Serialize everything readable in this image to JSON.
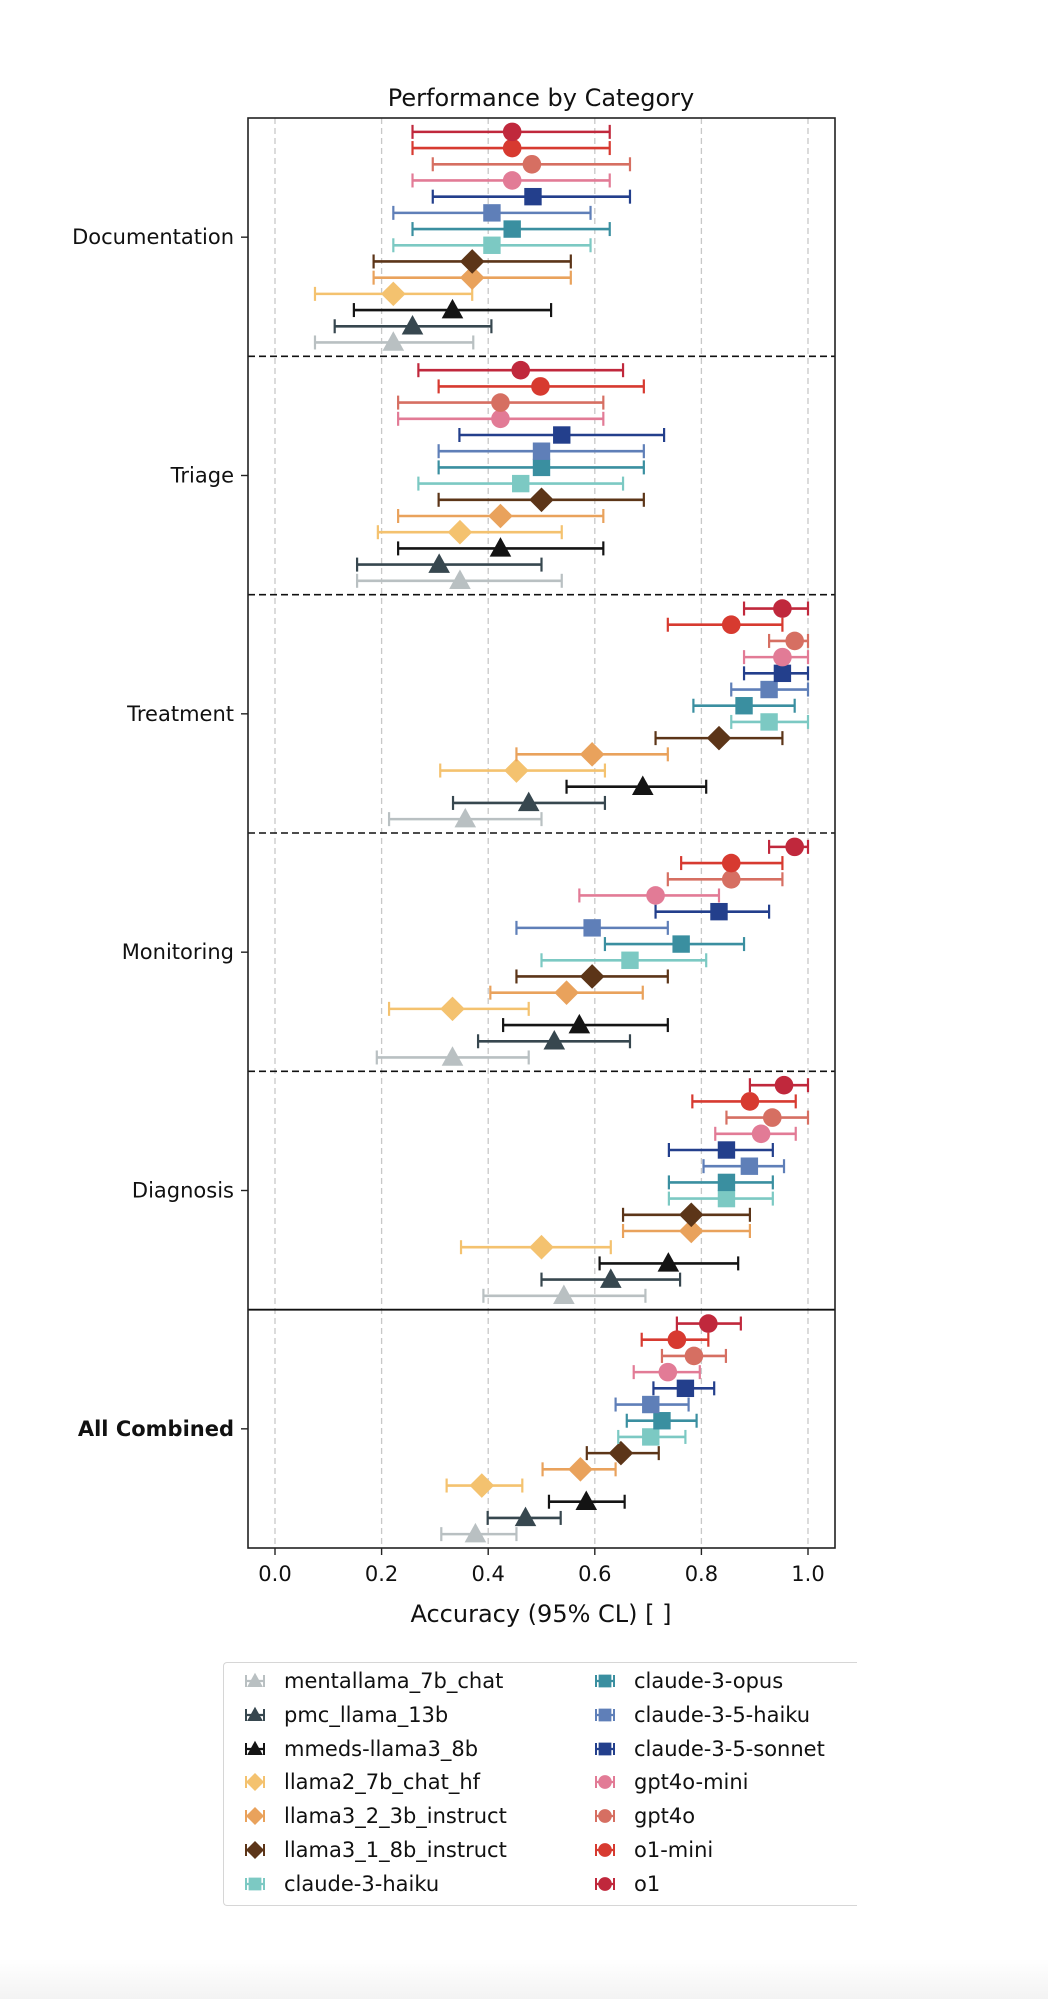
{
  "chart_data": {
    "type": "scatter",
    "subtype": "horizontal-errorbar-dot-plot",
    "title": "Performance by Category",
    "xlabel": "Accuracy (95% CL) [ ]",
    "ylabel": "",
    "xlim": [
      -0.05,
      1.05
    ],
    "xticks": [
      "0.0",
      "0.2",
      "0.4",
      "0.6",
      "0.8",
      "1.0"
    ],
    "xtick_values": [
      0.0,
      0.2,
      0.4,
      0.6,
      0.8,
      1.0
    ],
    "grid": "vertical dashed",
    "legend_placement": "below",
    "categories": [
      "Documentation",
      "Triage",
      "Treatment",
      "Monitoring",
      "Diagnosis",
      "All Combined"
    ],
    "category_bold": [
      false,
      false,
      false,
      false,
      false,
      true
    ],
    "series": [
      {
        "name": "mentallama_7b_chat",
        "marker": "triangle",
        "color": "#b9c0c2",
        "values": [
          0.222,
          0.347,
          0.357,
          0.333,
          0.542,
          0.376
        ],
        "lower": [
          0.075,
          0.154,
          0.214,
          0.191,
          0.391,
          0.312
        ],
        "upper": [
          0.372,
          0.538,
          0.5,
          0.476,
          0.695,
          0.453
        ]
      },
      {
        "name": "pmc_llama_13b",
        "marker": "triangle",
        "color": "#37474f",
        "values": [
          0.258,
          0.308,
          0.476,
          0.524,
          0.63,
          0.47
        ],
        "lower": [
          0.112,
          0.154,
          0.334,
          0.381,
          0.5,
          0.399
        ],
        "upper": [
          0.406,
          0.5,
          0.619,
          0.666,
          0.76,
          0.536
        ]
      },
      {
        "name": "mmeds-llama3_8b",
        "marker": "triangle",
        "color": "#141414",
        "values": [
          0.333,
          0.423,
          0.69,
          0.571,
          0.738,
          0.584
        ],
        "lower": [
          0.148,
          0.231,
          0.547,
          0.428,
          0.609,
          0.514
        ],
        "upper": [
          0.518,
          0.616,
          0.809,
          0.737,
          0.869,
          0.656
        ]
      },
      {
        "name": "llama2_7b_chat_hf",
        "marker": "diamond",
        "color": "#f4c26f",
        "values": [
          0.222,
          0.347,
          0.453,
          0.333,
          0.5,
          0.388
        ],
        "lower": [
          0.075,
          0.193,
          0.31,
          0.214,
          0.349,
          0.322
        ],
        "upper": [
          0.37,
          0.538,
          0.619,
          0.476,
          0.63,
          0.464
        ]
      },
      {
        "name": "llama3_2_3b_instruct",
        "marker": "diamond",
        "color": "#e9a25c",
        "values": [
          0.37,
          0.423,
          0.595,
          0.547,
          0.781,
          0.573
        ],
        "lower": [
          0.185,
          0.231,
          0.453,
          0.404,
          0.653,
          0.502
        ],
        "upper": [
          0.555,
          0.616,
          0.737,
          0.69,
          0.891,
          0.639
        ]
      },
      {
        "name": "llama3_1_8b_instruct",
        "marker": "diamond",
        "color": "#5c3518",
        "values": [
          0.37,
          0.5,
          0.833,
          0.595,
          0.781,
          0.649
        ],
        "lower": [
          0.185,
          0.307,
          0.714,
          0.453,
          0.653,
          0.585
        ],
        "upper": [
          0.555,
          0.692,
          0.952,
          0.737,
          0.891,
          0.72
        ]
      },
      {
        "name": "claude-3-haiku",
        "marker": "square",
        "color": "#7cc9c3",
        "values": [
          0.407,
          0.461,
          0.927,
          0.666,
          0.847,
          0.705
        ],
        "lower": [
          0.222,
          0.269,
          0.856,
          0.5,
          0.739,
          0.644
        ],
        "upper": [
          0.592,
          0.653,
          1.0,
          0.809,
          0.934,
          0.77
        ]
      },
      {
        "name": "claude-3-opus",
        "marker": "square",
        "color": "#3a8fa0",
        "values": [
          0.445,
          0.5,
          0.88,
          0.762,
          0.847,
          0.726
        ],
        "lower": [
          0.258,
          0.307,
          0.785,
          0.619,
          0.739,
          0.66
        ],
        "upper": [
          0.628,
          0.692,
          0.975,
          0.88,
          0.934,
          0.791
        ]
      },
      {
        "name": "claude-3-5-haiku",
        "marker": "square",
        "color": "#5f7fb8",
        "values": [
          0.407,
          0.5,
          0.927,
          0.595,
          0.89,
          0.705
        ],
        "lower": [
          0.222,
          0.307,
          0.856,
          0.453,
          0.804,
          0.639
        ],
        "upper": [
          0.592,
          0.692,
          1.0,
          0.737,
          0.955,
          0.776
        ]
      },
      {
        "name": "claude-3-5-sonnet",
        "marker": "square",
        "color": "#233f8c",
        "values": [
          0.484,
          0.538,
          0.952,
          0.833,
          0.847,
          0.77
        ],
        "lower": [
          0.296,
          0.346,
          0.88,
          0.714,
          0.739,
          0.71
        ],
        "upper": [
          0.666,
          0.73,
          1.0,
          0.927,
          0.934,
          0.824
        ]
      },
      {
        "name": "gpt4o-mini",
        "marker": "circle",
        "color": "#e27b96",
        "values": [
          0.445,
          0.423,
          0.952,
          0.714,
          0.912,
          0.737
        ],
        "lower": [
          0.258,
          0.231,
          0.88,
          0.571,
          0.826,
          0.673
        ],
        "upper": [
          0.628,
          0.616,
          1.0,
          0.833,
          0.977,
          0.797
        ]
      },
      {
        "name": "gpt4o",
        "marker": "circle",
        "color": "#d66f62",
        "values": [
          0.482,
          0.423,
          0.975,
          0.856,
          0.933,
          0.786
        ],
        "lower": [
          0.296,
          0.231,
          0.927,
          0.737,
          0.847,
          0.726
        ],
        "upper": [
          0.666,
          0.616,
          1.0,
          0.952,
          1.0,
          0.846
        ]
      },
      {
        "name": "o1-mini",
        "marker": "circle",
        "color": "#d73a30",
        "values": [
          0.445,
          0.498,
          0.856,
          0.856,
          0.891,
          0.754
        ],
        "lower": [
          0.258,
          0.307,
          0.737,
          0.762,
          0.783,
          0.688
        ],
        "upper": [
          0.628,
          0.692,
          0.952,
          0.952,
          0.977,
          0.813
        ]
      },
      {
        "name": "o1",
        "marker": "circle",
        "color": "#c0283c",
        "values": [
          0.445,
          0.461,
          0.952,
          0.975,
          0.955,
          0.813
        ],
        "lower": [
          0.258,
          0.269,
          0.88,
          0.927,
          0.891,
          0.754
        ],
        "upper": [
          0.628,
          0.653,
          1.0,
          1.0,
          1.0,
          0.874
        ]
      }
    ]
  }
}
